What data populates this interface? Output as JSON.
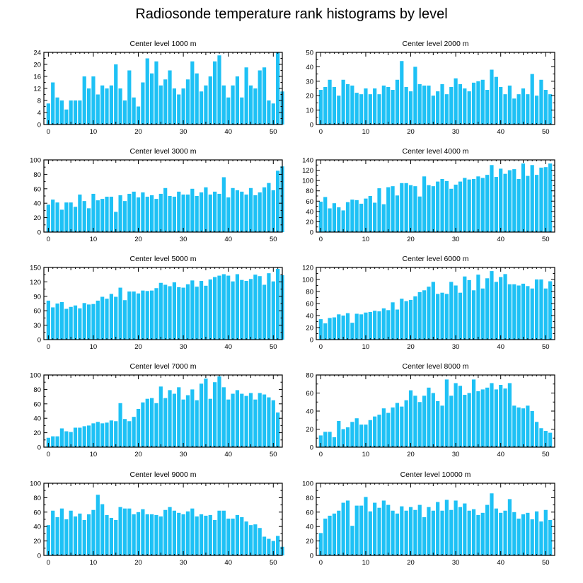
{
  "title": "Radiosonde temperature rank histograms by level",
  "bar_color": "#1EC1F5",
  "chart_data": [
    {
      "type": "bar",
      "title": "Center level 1000 m",
      "xlabel": "",
      "ylabel": "",
      "xlim": [
        -1,
        52
      ],
      "ylim": [
        0,
        24
      ],
      "yticks": [
        0,
        4,
        8,
        12,
        16,
        20,
        24
      ],
      "xticks": [
        0,
        10,
        20,
        30,
        40,
        50
      ],
      "values": [
        7,
        14,
        9,
        8,
        5,
        8,
        8,
        8,
        16,
        12,
        16,
        10,
        13,
        12,
        13,
        20,
        12,
        8,
        18,
        9,
        6,
        14,
        22,
        17,
        21,
        13,
        15,
        18,
        12,
        10,
        12,
        15,
        21,
        17,
        11,
        13,
        16,
        21,
        23,
        13,
        9,
        13,
        16,
        9,
        19,
        13,
        12,
        18,
        19,
        8,
        7,
        24,
        11
      ]
    },
    {
      "type": "bar",
      "title": "Center level 2000 m",
      "xlabel": "",
      "ylabel": "",
      "xlim": [
        -1,
        52
      ],
      "ylim": [
        0,
        50
      ],
      "yticks": [
        0,
        10,
        20,
        30,
        40,
        50
      ],
      "xticks": [
        0,
        10,
        20,
        30,
        40,
        50
      ],
      "values": [
        24,
        26,
        31,
        26,
        20,
        31,
        28,
        27,
        22,
        21,
        25,
        21,
        25,
        21,
        27,
        26,
        24,
        31,
        44,
        26,
        23,
        40,
        28,
        27,
        27,
        20,
        23,
        28,
        21,
        26,
        32,
        28,
        25,
        23,
        29,
        30,
        31,
        24,
        38,
        33,
        26,
        21,
        27,
        18,
        21,
        25,
        21,
        35,
        20,
        31,
        24,
        21
      ]
    },
    {
      "type": "bar",
      "title": "Center level 3000 m",
      "xlabel": "",
      "ylabel": "",
      "xlim": [
        -1,
        52
      ],
      "ylim": [
        0,
        100
      ],
      "yticks": [
        0,
        20,
        40,
        60,
        80,
        100
      ],
      "xticks": [
        0,
        10,
        20,
        30,
        40,
        50
      ],
      "values": [
        38,
        45,
        41,
        31,
        41,
        41,
        35,
        52,
        43,
        33,
        53,
        44,
        46,
        49,
        49,
        28,
        51,
        43,
        53,
        56,
        48,
        55,
        49,
        51,
        46,
        53,
        61,
        50,
        49,
        56,
        52,
        52,
        60,
        50,
        55,
        62,
        52,
        56,
        53,
        76,
        48,
        61,
        58,
        56,
        52,
        61,
        51,
        55,
        62,
        68,
        58,
        85,
        91
      ]
    },
    {
      "type": "bar",
      "title": "Center level 4000 m",
      "xlabel": "",
      "ylabel": "",
      "xlim": [
        -1,
        52
      ],
      "ylim": [
        0,
        140
      ],
      "yticks": [
        0,
        20,
        40,
        60,
        80,
        100,
        120,
        140
      ],
      "xticks": [
        0,
        10,
        20,
        30,
        40,
        50
      ],
      "values": [
        59,
        68,
        46,
        56,
        48,
        42,
        58,
        63,
        62,
        55,
        65,
        70,
        57,
        85,
        54,
        87,
        89,
        71,
        95,
        95,
        91,
        89,
        69,
        108,
        91,
        89,
        98,
        103,
        99,
        84,
        92,
        98,
        105,
        102,
        103,
        108,
        105,
        111,
        130,
        107,
        123,
        113,
        120,
        122,
        103,
        133,
        109,
        130,
        111,
        125,
        126,
        133
      ]
    },
    {
      "type": "bar",
      "title": "Center level 5000 m",
      "xlabel": "",
      "ylabel": "",
      "xlim": [
        -1,
        52
      ],
      "ylim": [
        0,
        150
      ],
      "yticks": [
        0,
        30,
        60,
        90,
        120,
        150
      ],
      "xticks": [
        0,
        10,
        20,
        30,
        40,
        50
      ],
      "values": [
        81,
        67,
        75,
        78,
        64,
        68,
        71,
        65,
        76,
        73,
        74,
        81,
        89,
        85,
        95,
        89,
        108,
        82,
        100,
        100,
        96,
        102,
        101,
        102,
        107,
        118,
        114,
        111,
        119,
        109,
        108,
        115,
        123,
        110,
        122,
        112,
        125,
        130,
        133,
        136,
        133,
        121,
        136,
        124,
        122,
        126,
        135,
        132,
        114,
        138,
        121,
        147,
        134
      ]
    },
    {
      "type": "bar",
      "title": "Center level 6000 m",
      "xlabel": "",
      "ylabel": "",
      "xlim": [
        -1,
        52
      ],
      "ylim": [
        0,
        120
      ],
      "yticks": [
        0,
        20,
        40,
        60,
        80,
        100,
        120
      ],
      "xticks": [
        0,
        10,
        20,
        30,
        40,
        50
      ],
      "values": [
        34,
        27,
        36,
        37,
        42,
        40,
        44,
        28,
        43,
        42,
        45,
        46,
        48,
        47,
        52,
        49,
        62,
        50,
        68,
        64,
        66,
        72,
        79,
        82,
        88,
        96,
        76,
        78,
        76,
        96,
        90,
        78,
        105,
        99,
        82,
        108,
        85,
        102,
        114,
        96,
        104,
        109,
        92,
        92,
        90,
        93,
        89,
        85,
        100,
        100,
        85,
        97
      ]
    },
    {
      "type": "bar",
      "title": "Center level 7000 m",
      "xlabel": "",
      "ylabel": "",
      "xlim": [
        -1,
        52
      ],
      "ylim": [
        0,
        100
      ],
      "yticks": [
        0,
        20,
        40,
        60,
        80,
        100
      ],
      "xticks": [
        0,
        10,
        20,
        30,
        40,
        50
      ],
      "values": [
        13,
        15,
        15,
        26,
        22,
        21,
        27,
        27,
        29,
        30,
        33,
        35,
        33,
        34,
        37,
        36,
        61,
        39,
        36,
        42,
        53,
        62,
        67,
        68,
        61,
        84,
        68,
        79,
        74,
        83,
        66,
        72,
        80,
        65,
        88,
        95,
        67,
        90,
        98,
        83,
        66,
        74,
        79,
        74,
        71,
        75,
        66,
        75,
        73,
        69,
        65,
        48
      ]
    },
    {
      "type": "bar",
      "title": "Center level 8000 m",
      "xlabel": "",
      "ylabel": "",
      "xlim": [
        -1,
        52
      ],
      "ylim": [
        0,
        80
      ],
      "yticks": [
        0,
        20,
        40,
        60,
        80
      ],
      "xticks": [
        0,
        10,
        20,
        30,
        40,
        50
      ],
      "values": [
        13,
        17,
        17,
        11,
        29,
        20,
        22,
        28,
        32,
        25,
        25,
        30,
        34,
        36,
        43,
        38,
        44,
        49,
        45,
        52,
        63,
        57,
        50,
        57,
        66,
        60,
        51,
        46,
        75,
        57,
        71,
        68,
        58,
        60,
        75,
        62,
        64,
        66,
        71,
        64,
        69,
        65,
        71,
        46,
        44,
        43,
        46,
        40,
        28,
        21,
        18,
        16
      ]
    },
    {
      "type": "bar",
      "title": "Center level 9000 m",
      "xlabel": "",
      "ylabel": "",
      "xlim": [
        -1,
        52
      ],
      "ylim": [
        0,
        100
      ],
      "yticks": [
        0,
        20,
        40,
        60,
        80,
        100
      ],
      "xticks": [
        0,
        10,
        20,
        30,
        40,
        50
      ],
      "values": [
        42,
        62,
        53,
        65,
        50,
        62,
        54,
        58,
        49,
        57,
        63,
        84,
        71,
        56,
        52,
        49,
        67,
        65,
        65,
        57,
        60,
        64,
        57,
        57,
        56,
        54,
        63,
        67,
        62,
        59,
        57,
        61,
        65,
        54,
        57,
        55,
        56,
        49,
        62,
        62,
        51,
        51,
        56,
        53,
        47,
        42,
        43,
        38,
        26,
        23,
        20,
        27,
        12
      ]
    },
    {
      "type": "bar",
      "title": "Center level 10000 m",
      "xlabel": "",
      "ylabel": "",
      "xlim": [
        -1,
        52
      ],
      "ylim": [
        0,
        100
      ],
      "yticks": [
        0,
        20,
        40,
        60,
        80,
        100
      ],
      "xticks": [
        0,
        10,
        20,
        30,
        40,
        50
      ],
      "values": [
        31,
        51,
        55,
        58,
        62,
        73,
        76,
        41,
        69,
        69,
        81,
        61,
        73,
        66,
        76,
        70,
        62,
        58,
        68,
        62,
        67,
        63,
        70,
        53,
        67,
        62,
        74,
        62,
        77,
        63,
        76,
        67,
        72,
        62,
        64,
        56,
        59,
        70,
        86,
        65,
        59,
        62,
        78,
        60,
        51,
        57,
        59,
        50,
        61,
        47,
        63,
        49
      ]
    }
  ]
}
